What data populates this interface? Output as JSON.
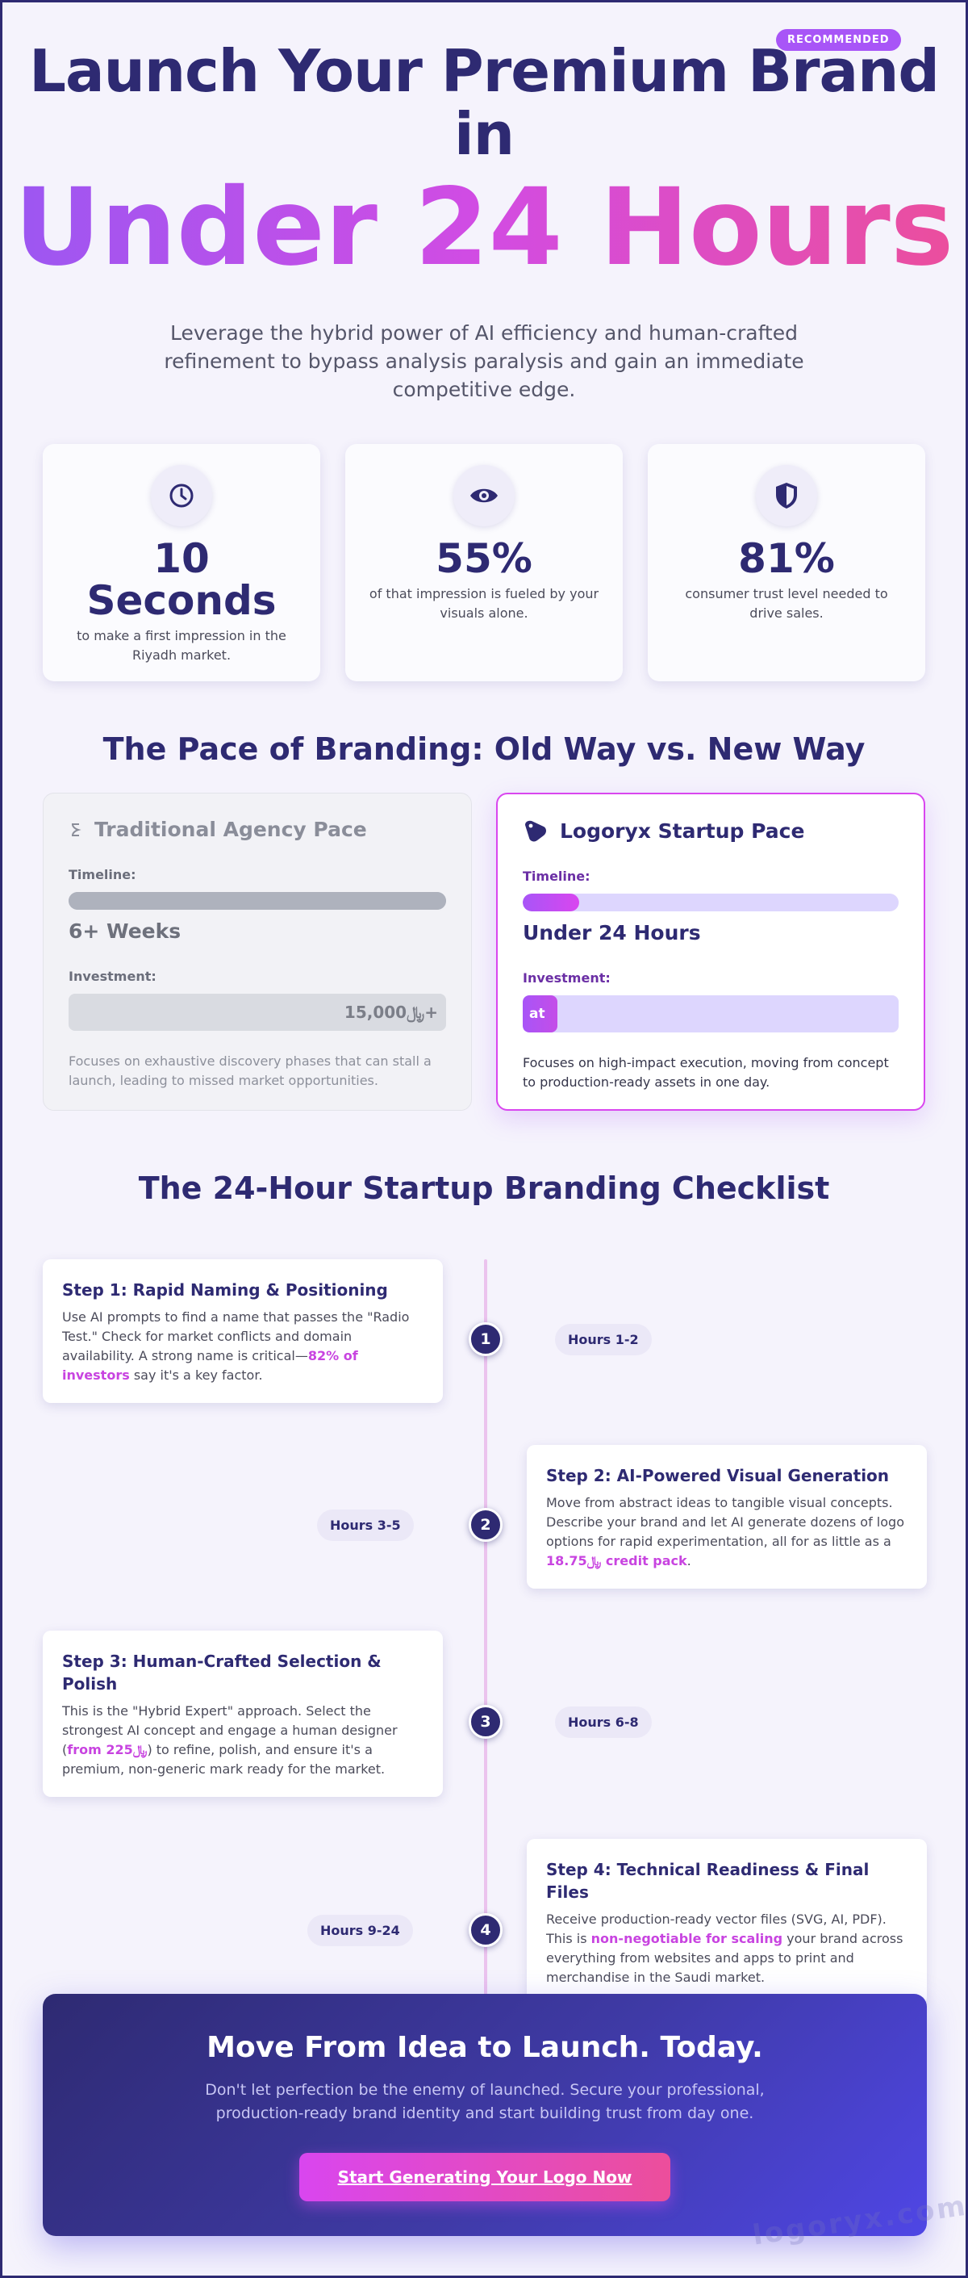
{
  "hero": {
    "badge": "RECOMMENDED",
    "line1": "Launch Your Premium Brand",
    "line2": "in",
    "line3": "Under 24 Hours",
    "subtitle": "Leverage the hybrid power of AI efficiency and human-crafted refinement to bypass analysis paralysis and gain an immediate competitive edge."
  },
  "stats": [
    {
      "icon": "clock-icon",
      "value": "10 Seconds",
      "text": "to make a first impression in the Riyadh market."
    },
    {
      "icon": "eye-icon",
      "value": "55%",
      "text": "of that impression is fueled by your visuals alone."
    },
    {
      "icon": "shield-icon",
      "value": "81%",
      "text": "consumer trust level needed to drive sales."
    }
  ],
  "pace": {
    "title": "The Pace of Branding: Old Way vs. New Way",
    "traditional": {
      "icon": "hourglass-icon",
      "title": "Traditional Agency Pace",
      "timeline_label": "Timeline:",
      "timeline_progress": 1.0,
      "timeline_value": "6+ Weeks",
      "investment_label": "Investment:",
      "investment_value": "15,000﷼+",
      "note": "Focuses on exhaustive discovery phases that can stall a launch, leading to missed market opportunities."
    },
    "startup": {
      "icon": "rocket-icon",
      "title": "Logoryx Startup Pace",
      "timeline_label": "Timeline:",
      "timeline_progress": 0.15,
      "timeline_value": "Under 24 Hours",
      "investment_label": "Investment:",
      "investment_progress": 0.04,
      "investment_value": "at",
      "note": "Focuses on high-impact execution, moving from concept to production-ready assets in one day."
    }
  },
  "checklist": {
    "title": "The 24-Hour Startup Branding Checklist",
    "steps": [
      {
        "number": "1",
        "title": "Step 1: Rapid Naming & Positioning",
        "text_before": "Use AI prompts to find a name that passes the \"Radio Test.\" Check for market conflicts and domain availability. A strong name is critical—",
        "highlight": "82% of investors",
        "text_after": " say it's a key factor.",
        "hours": "Hours 1-2"
      },
      {
        "number": "2",
        "title": "Step 2: AI-Powered Visual Generation",
        "text_before": "Move from abstract ideas to tangible visual concepts. Describe your brand and let AI generate dozens of logo options for rapid experimentation, all for as little as a ",
        "highlight": "18.75﷼ credit pack",
        "text_after": ".",
        "hours": "Hours 3-5"
      },
      {
        "number": "3",
        "title": "Step 3: Human-Crafted Selection & Polish",
        "text_before": "This is the \"Hybrid Expert\" approach. Select the strongest AI concept and engage a human designer (",
        "highlight": "from 225﷼",
        "text_after": ") to refine, polish, and ensure it's a premium, non-generic mark ready for the market.",
        "hours": "Hours 6-8"
      },
      {
        "number": "4",
        "title": "Step 4: Technical Readiness & Final Files",
        "text_before": "Receive production-ready vector files (SVG, AI, PDF). This is ",
        "highlight": "non-negotiable for scaling",
        "text_after": " your brand across everything from websites and apps to print and merchandise in the Saudi market.",
        "hours": "Hours 9-24"
      }
    ]
  },
  "cta": {
    "title": "Move From Idea to Launch. Today.",
    "text": "Don't let perfection be the enemy of launched. Secure your professional, production-ready brand identity and start building trust from day one.",
    "button": "Start Generating Your Logo Now"
  },
  "watermark": "logoryx.com",
  "colors": {
    "navy": "#2e2a72",
    "purple": "#a855f7",
    "magenta": "#d946ef",
    "pink": "#ec4e9b",
    "background": "#f5f3fc"
  }
}
